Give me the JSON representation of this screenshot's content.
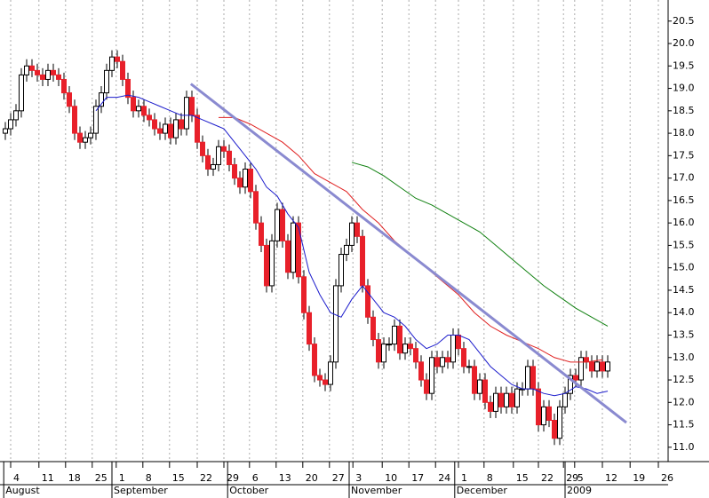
{
  "chart_data": {
    "type": "candlestick",
    "xlim": [
      -1,
      124.333
    ],
    "ylim": [
      10.68,
      20.97
    ],
    "yticks": [
      {
        "value": 11,
        "label": "11.0"
      },
      11.5,
      {
        "value": 12,
        "label": "12.0"
      },
      12.5,
      {
        "value": 13,
        "label": "13.0"
      },
      13.5,
      {
        "value": 14,
        "label": "14.0"
      },
      14.5,
      {
        "value": 15,
        "label": "15.0"
      },
      15.5,
      {
        "value": 16,
        "label": "16.0"
      },
      16.5,
      {
        "value": 17,
        "label": "17.0"
      },
      17.5,
      {
        "value": 18,
        "label": "18.0"
      },
      18.5,
      {
        "value": 19,
        "label": "19.0"
      },
      19.5,
      {
        "value": 20,
        "label": "20.0"
      },
      20.5
    ],
    "xticks": [
      {
        "value": 1,
        "label": "4"
      },
      {
        "value": 6.3,
        "label": "11"
      },
      {
        "value": 11.3,
        "label": "18"
      },
      {
        "value": 16.3,
        "label": "25"
      },
      {
        "value": 20.8,
        "label": "1"
      },
      {
        "value": 25.8,
        "label": "8"
      },
      {
        "value": 30.8,
        "label": "15"
      },
      {
        "value": 36,
        "label": "22"
      },
      {
        "value": 41,
        "label": "29"
      },
      {
        "value": 45.8,
        "label": "6"
      },
      {
        "value": 50.8,
        "label": "13"
      },
      {
        "value": 55.8,
        "label": "20"
      },
      {
        "value": 60.8,
        "label": "27"
      },
      {
        "value": 65.2,
        "label": "3"
      },
      {
        "value": 70.7,
        "label": "10"
      },
      {
        "value": 75.7,
        "label": "17"
      },
      {
        "value": 80.7,
        "label": "24"
      },
      {
        "value": 85,
        "label": "1"
      },
      {
        "value": 89.8,
        "label": "8"
      },
      {
        "value": 95.3,
        "label": "15"
      },
      {
        "value": 100,
        "label": "22"
      },
      {
        "value": 104.7,
        "label": "29"
      },
      {
        "value": 106.8,
        "label": "5"
      },
      {
        "value": 112,
        "label": "12"
      },
      {
        "value": 117.2,
        "label": "19"
      },
      {
        "value": 122.5,
        "label": "26"
      }
    ],
    "month_labels": [
      {
        "value": -0.3,
        "label": "August"
      },
      {
        "value": 20,
        "label": "September"
      },
      {
        "value": 41.7,
        "label": "October"
      },
      {
        "value": 64.5,
        "label": "November"
      },
      {
        "value": 84.3,
        "label": "December"
      },
      {
        "value": 105,
        "label": "2009"
      }
    ],
    "grid": true,
    "up_color": "#ffffff",
    "down_color": "#e8202a",
    "candles": {
      "x": [
        0,
        1,
        2,
        3,
        4,
        5,
        6,
        7,
        8,
        9,
        10,
        11,
        12,
        13,
        14,
        15,
        16,
        17,
        18,
        19,
        20,
        21,
        22,
        23,
        24,
        25,
        26,
        27,
        28,
        29,
        30,
        31,
        32,
        33,
        34,
        35,
        36,
        37,
        38,
        39,
        40,
        41,
        42,
        43,
        44,
        45,
        46,
        47,
        48,
        49,
        50,
        51,
        52,
        53,
        54,
        55,
        56,
        57,
        58,
        59,
        60,
        61,
        62,
        63,
        64,
        65,
        66,
        67,
        68,
        69,
        70,
        71,
        72,
        73,
        74,
        75,
        76,
        77,
        78,
        79,
        80,
        81,
        82,
        83,
        84,
        85,
        86,
        87,
        88,
        89,
        90,
        91,
        92,
        93,
        94,
        95,
        96,
        97,
        98,
        99,
        100,
        101,
        102,
        103,
        104,
        105,
        106,
        107,
        108,
        109,
        110,
        111,
        112,
        113
      ],
      "open": [
        18.0,
        18.1,
        18.3,
        18.5,
        19.3,
        19.5,
        19.4,
        19.3,
        19.2,
        19.4,
        19.3,
        19.2,
        18.9,
        18.6,
        18.0,
        17.8,
        17.9,
        18.0,
        18.6,
        18.9,
        19.4,
        19.7,
        19.6,
        19.2,
        18.8,
        18.5,
        18.6,
        18.4,
        18.3,
        18.1,
        18.0,
        18.2,
        17.9,
        18.3,
        18.1,
        18.8,
        18.4,
        17.8,
        17.5,
        17.2,
        17.3,
        17.7,
        17.6,
        17.3,
        17.0,
        16.8,
        17.2,
        16.7,
        16.0,
        15.5,
        14.6,
        15.6,
        16.3,
        15.6,
        14.9,
        16.0,
        14.8,
        14.0,
        13.3,
        12.6,
        12.5,
        12.4,
        12.9,
        14.6,
        15.3,
        15.5,
        16.0,
        15.7,
        14.6,
        13.9,
        13.4,
        12.9,
        13.3,
        13.3,
        13.7,
        13.1,
        13.3,
        13.2,
        12.9,
        12.5,
        12.2,
        13.0,
        12.8,
        13.0,
        12.9,
        13.5,
        13.2,
        12.8,
        12.8,
        12.2,
        12.5,
        12.0,
        11.8,
        12.2,
        11.9,
        12.2,
        11.9,
        12.3,
        12.3,
        12.8,
        12.3,
        11.5,
        11.9,
        11.6,
        11.2,
        11.9,
        12.2,
        12.6,
        12.5,
        13.0,
        12.9,
        12.7,
        12.9,
        12.7
      ],
      "high": [
        18.25,
        18.45,
        18.65,
        19.45,
        19.65,
        19.65,
        19.55,
        19.45,
        19.55,
        19.55,
        19.45,
        19.35,
        19.05,
        18.75,
        18.15,
        18.05,
        18.15,
        18.75,
        19.05,
        19.55,
        19.85,
        19.85,
        19.75,
        19.35,
        18.95,
        18.75,
        18.75,
        18.55,
        18.45,
        18.25,
        18.35,
        18.35,
        18.45,
        18.45,
        18.95,
        18.95,
        18.55,
        17.95,
        17.65,
        17.45,
        17.85,
        17.85,
        17.75,
        17.45,
        17.15,
        17.35,
        17.35,
        16.85,
        16.15,
        15.65,
        15.75,
        16.45,
        16.45,
        15.75,
        16.15,
        16.15,
        14.95,
        14.15,
        13.45,
        12.75,
        12.65,
        13.05,
        14.75,
        15.45,
        15.65,
        16.15,
        16.15,
        15.85,
        14.75,
        14.05,
        13.55,
        13.45,
        13.45,
        13.85,
        13.85,
        13.45,
        13.45,
        13.35,
        13.05,
        12.65,
        13.15,
        13.15,
        13.15,
        13.15,
        13.65,
        13.65,
        13.35,
        12.95,
        12.95,
        12.65,
        12.65,
        12.15,
        12.35,
        12.35,
        12.35,
        12.35,
        12.45,
        12.45,
        12.95,
        12.95,
        12.45,
        12.05,
        12.05,
        11.75,
        12.05,
        12.35,
        12.75,
        12.75,
        13.15,
        13.15,
        13.05,
        13.05,
        13.05,
        13.05
      ],
      "low": [
        17.85,
        17.95,
        18.15,
        18.35,
        19.15,
        19.25,
        19.15,
        19.05,
        19.05,
        19.15,
        19.05,
        18.75,
        18.45,
        17.85,
        17.65,
        17.65,
        17.75,
        17.85,
        18.45,
        18.75,
        19.25,
        19.45,
        19.05,
        18.65,
        18.35,
        18.35,
        18.25,
        18.15,
        17.95,
        17.85,
        17.85,
        17.75,
        17.75,
        17.95,
        17.95,
        18.25,
        17.65,
        17.35,
        17.05,
        17.05,
        17.15,
        17.45,
        17.15,
        16.85,
        16.65,
        16.65,
        16.55,
        15.85,
        15.35,
        14.45,
        14.45,
        15.45,
        15.45,
        14.75,
        14.75,
        14.65,
        13.85,
        13.15,
        12.45,
        12.35,
        12.25,
        12.25,
        12.75,
        14.45,
        15.15,
        15.35,
        15.55,
        14.45,
        13.75,
        13.25,
        12.75,
        12.75,
        13.15,
        13.15,
        12.95,
        12.95,
        13.05,
        12.75,
        12.35,
        12.05,
        12.05,
        12.65,
        12.65,
        12.75,
        12.75,
        13.05,
        12.65,
        12.65,
        12.05,
        12.05,
        11.85,
        11.65,
        11.65,
        11.75,
        11.75,
        11.75,
        11.75,
        12.15,
        12.15,
        12.15,
        11.35,
        11.35,
        11.45,
        11.05,
        11.05,
        11.75,
        12.05,
        12.35,
        12.35,
        12.75,
        12.55,
        12.55,
        12.55,
        12.55
      ],
      "close": [
        18.1,
        18.3,
        18.5,
        19.3,
        19.5,
        19.4,
        19.3,
        19.2,
        19.4,
        19.3,
        19.2,
        18.9,
        18.6,
        18.0,
        17.8,
        17.9,
        18.0,
        18.6,
        18.9,
        19.4,
        19.7,
        19.6,
        19.2,
        18.8,
        18.5,
        18.6,
        18.4,
        18.3,
        18.1,
        18.0,
        18.2,
        17.9,
        18.3,
        18.1,
        18.8,
        18.4,
        17.8,
        17.5,
        17.2,
        17.3,
        17.7,
        17.6,
        17.3,
        17.0,
        16.8,
        17.2,
        16.7,
        16.0,
        15.5,
        14.6,
        15.6,
        16.3,
        15.6,
        14.9,
        16.0,
        14.8,
        14.0,
        13.3,
        12.6,
        12.5,
        12.4,
        12.9,
        14.6,
        15.3,
        15.5,
        16.0,
        15.7,
        14.6,
        13.9,
        13.4,
        12.9,
        13.3,
        13.3,
        13.7,
        13.1,
        13.3,
        13.2,
        12.9,
        12.5,
        12.2,
        13.0,
        12.8,
        13.0,
        12.9,
        13.5,
        13.2,
        12.8,
        12.8,
        12.2,
        12.5,
        12.0,
        11.8,
        12.2,
        11.9,
        12.2,
        11.9,
        12.3,
        12.3,
        12.8,
        12.3,
        11.5,
        11.9,
        11.6,
        11.2,
        11.9,
        12.2,
        12.6,
        12.5,
        13.0,
        12.9,
        12.7,
        12.9,
        12.7,
        12.9
      ]
    },
    "lines": [
      {
        "color": "#1c1ccc",
        "width": 1,
        "x": [
          17,
          19,
          21,
          23,
          25,
          27,
          29,
          31,
          33,
          35,
          37,
          39,
          41,
          43,
          45,
          47,
          49,
          51,
          53,
          55,
          57,
          59,
          61,
          63,
          65,
          67,
          69,
          71,
          73,
          75,
          77,
          79,
          81,
          83,
          85,
          87,
          89,
          91,
          93,
          95,
          97,
          99,
          101,
          103,
          105,
          107,
          109,
          111,
          113
        ],
        "values": [
          18.5,
          18.8,
          18.8,
          18.85,
          18.8,
          18.7,
          18.6,
          18.5,
          18.4,
          18.4,
          18.3,
          18.2,
          18.1,
          17.8,
          17.5,
          17.2,
          16.8,
          16.6,
          16.2,
          15.9,
          14.9,
          14.4,
          14.0,
          13.9,
          14.3,
          14.6,
          14.3,
          14.0,
          13.9,
          13.7,
          13.4,
          13.2,
          13.3,
          13.5,
          13.5,
          13.4,
          13.1,
          12.8,
          12.6,
          12.4,
          12.3,
          12.3,
          12.2,
          12.15,
          12.2,
          12.35,
          12.3,
          12.2,
          12.25
        ]
      },
      {
        "color": "#e02020",
        "width": 1,
        "x": [
          40,
          43,
          46,
          49,
          52,
          55,
          58,
          61,
          64,
          67,
          70,
          73,
          76,
          79,
          82,
          85,
          88,
          91,
          94,
          97,
          100,
          103,
          106,
          109,
          112
        ],
        "values": [
          18.35,
          18.35,
          18.2,
          18.0,
          17.8,
          17.5,
          17.1,
          16.9,
          16.7,
          16.3,
          16.0,
          15.6,
          15.3,
          15.0,
          14.7,
          14.4,
          14.0,
          13.7,
          13.5,
          13.35,
          13.2,
          13.0,
          12.9,
          12.9,
          12.95
        ]
      },
      {
        "color": "#108010",
        "width": 1,
        "x": [
          65,
          68,
          71,
          74,
          77,
          80,
          83,
          86,
          89,
          92,
          95,
          98,
          101,
          104,
          107,
          110,
          113
        ],
        "values": [
          17.35,
          17.25,
          17.05,
          16.8,
          16.55,
          16.4,
          16.2,
          16.0,
          15.8,
          15.5,
          15.2,
          14.9,
          14.6,
          14.35,
          14.1,
          13.9,
          13.7
        ]
      },
      {
        "color": "#8a8ad0",
        "width": 3,
        "x": [
          34.8,
          116.5
        ],
        "values": [
          19.1,
          11.55
        ]
      }
    ]
  }
}
